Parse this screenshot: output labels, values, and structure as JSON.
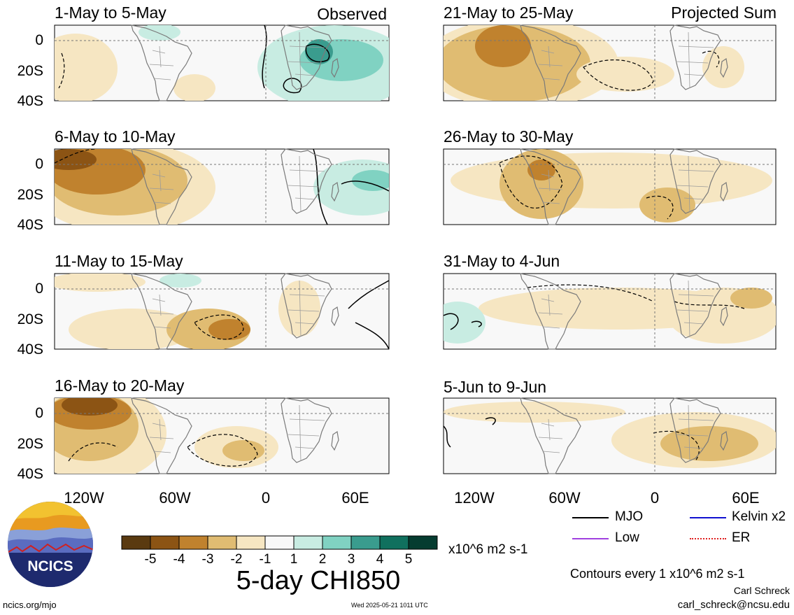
{
  "panels_left": [
    {
      "title": "1-May to 5-May",
      "corner": "Observed"
    },
    {
      "title": "6-May to 10-May",
      "corner": ""
    },
    {
      "title": "11-May to 15-May",
      "corner": ""
    },
    {
      "title": "16-May to 20-May",
      "corner": ""
    }
  ],
  "panels_right": [
    {
      "title": "21-May to 25-May",
      "corner": "Projected Sum"
    },
    {
      "title": "26-May to 30-May",
      "corner": ""
    },
    {
      "title": "31-May to 4-Jun",
      "corner": ""
    },
    {
      "title": "5-Jun to 9-Jun",
      "corner": ""
    }
  ],
  "lat_labels": [
    "0",
    "20S",
    "40S"
  ],
  "lon_labels": [
    "120W",
    "60W",
    "0",
    "60E"
  ],
  "legend": {
    "mjo": "MJO",
    "kelvin": "Kelvin x2",
    "low": "Low",
    "er": "ER",
    "mjo_color": "#000000",
    "kelvin_color": "#1010d0",
    "low_color": "#a040e0",
    "er_color": "#e02020"
  },
  "colorbar": {
    "labels": [
      "-5",
      "-4",
      "-3",
      "-2",
      "-1",
      "1",
      "2",
      "3",
      "4",
      "5"
    ],
    "colors": [
      "#5a3a10",
      "#8c5414",
      "#c0822e",
      "#e0bc72",
      "#f6e6c2",
      "#f8f8f8",
      "#c8ece2",
      "#80d2c2",
      "#3a9c8e",
      "#10705e",
      "#053c30"
    ],
    "units": "x10^6 m2 s-1"
  },
  "title": "5-day CHI850",
  "contour_note": "Contours every 1 x10^6 m2 s-1",
  "author": "Carl Schreck",
  "email": "carl_schreck@ncsu.edu",
  "url": "ncics.org/mjo",
  "timestamp": "Wed 2025-05-21 1011 UTC",
  "logo_text": "NCICS"
}
